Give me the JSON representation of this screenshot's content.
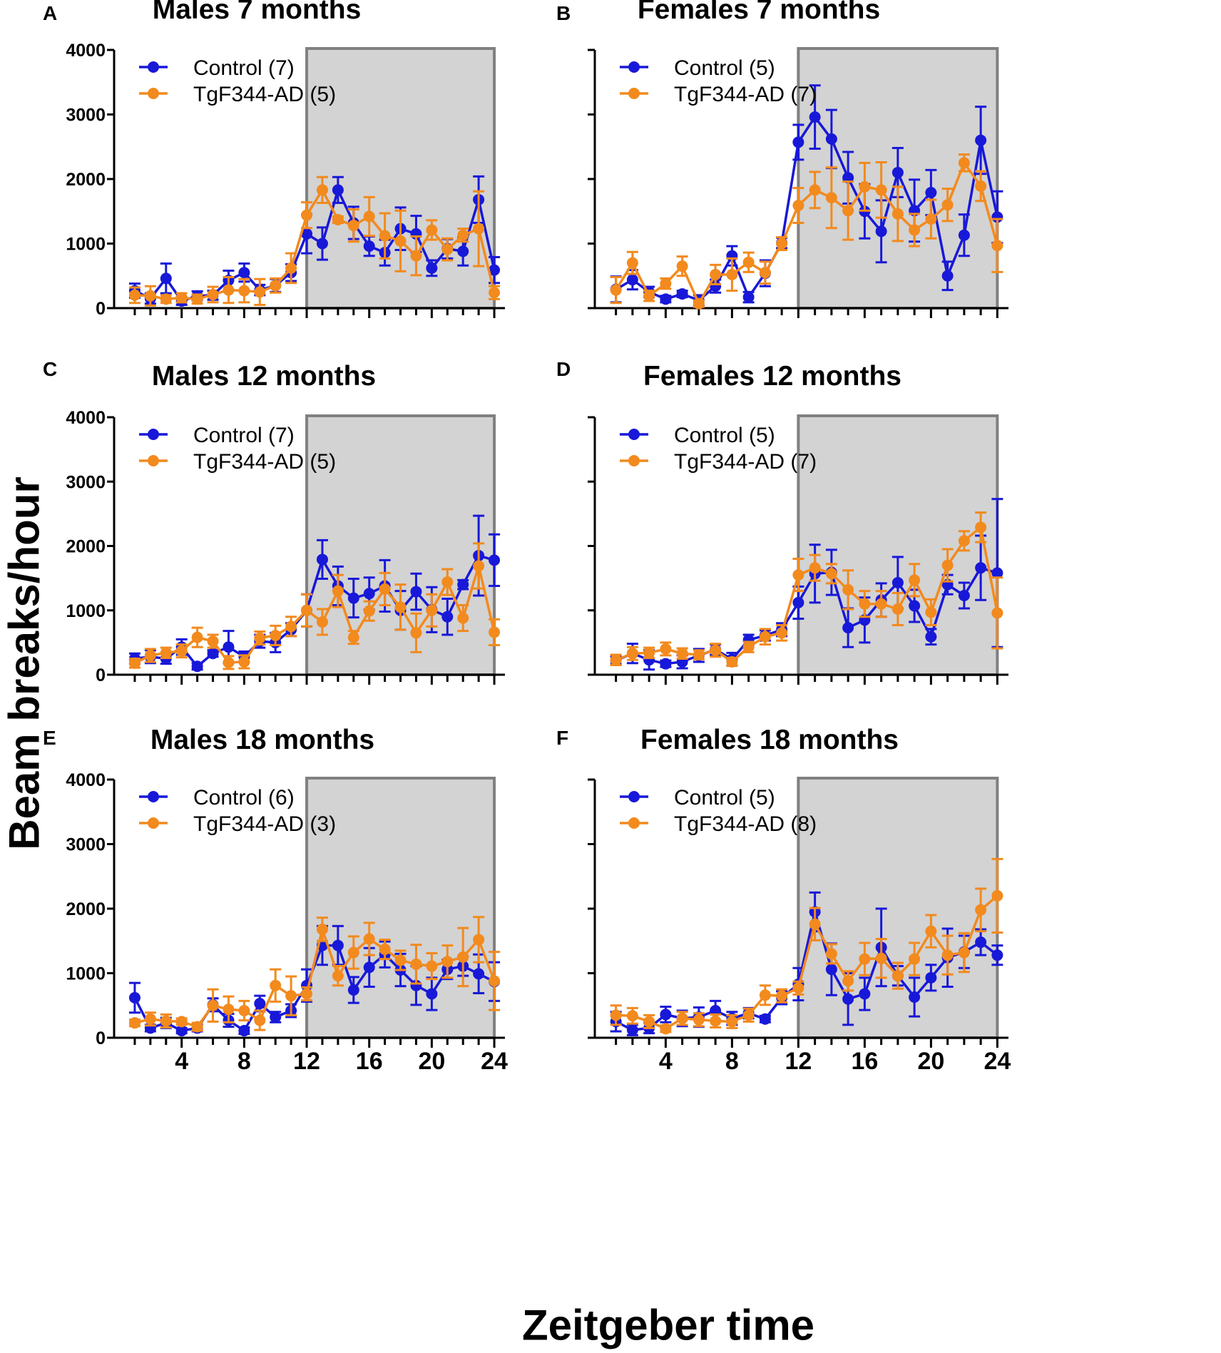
{
  "figure": {
    "ylabel": "Beam breaks/hour",
    "xlabel": "Zeitgeber time"
  },
  "colors": {
    "control": "#1818d8",
    "tg": "#f28a1e",
    "dark_phase": "#d3d3d3",
    "dark_border": "#808080"
  },
  "chart_data": [
    {
      "type": "line",
      "panel": "A",
      "title": "Males 7 months",
      "x": [
        1,
        2,
        3,
        4,
        5,
        6,
        7,
        8,
        9,
        10,
        11,
        12,
        13,
        14,
        15,
        16,
        17,
        18,
        19,
        20,
        21,
        22,
        23,
        24
      ],
      "xticks": [
        4,
        8,
        12,
        16,
        20,
        24
      ],
      "xlim": [
        0.5,
        24.5
      ],
      "yticks": [
        0,
        1000,
        2000,
        3000,
        4000
      ],
      "ylim": [
        0,
        4000
      ],
      "show_ytick_labels": true,
      "dark_phase": [
        12,
        24
      ],
      "legend_position": "top-left",
      "series": [
        {
          "name": "Control (7)",
          "key": "control",
          "values": [
            270,
            150,
            460,
            110,
            190,
            200,
            430,
            550,
            280,
            350,
            550,
            1150,
            1000,
            1830,
            1320,
            960,
            860,
            1230,
            1150,
            620,
            920,
            880,
            1680,
            590
          ],
          "errors": [
            110,
            80,
            230,
            60,
            70,
            70,
            150,
            140,
            80,
            100,
            130,
            300,
            250,
            200,
            250,
            150,
            200,
            330,
            280,
            120,
            150,
            220,
            360,
            200
          ]
        },
        {
          "name": "TgF344-AD (5)",
          "key": "tg",
          "values": [
            200,
            190,
            140,
            160,
            140,
            210,
            280,
            270,
            250,
            350,
            620,
            1440,
            1830,
            1370,
            1280,
            1420,
            1120,
            1040,
            810,
            1210,
            910,
            1130,
            1230,
            240
          ],
          "errors": [
            120,
            150,
            60,
            70,
            70,
            120,
            200,
            180,
            200,
            110,
            230,
            200,
            200,
            50,
            250,
            300,
            350,
            470,
            300,
            150,
            170,
            100,
            580,
            100
          ]
        }
      ]
    },
    {
      "type": "line",
      "panel": "B",
      "title": "Females 7 months",
      "x": [
        1,
        2,
        3,
        4,
        5,
        6,
        7,
        8,
        9,
        10,
        11,
        12,
        13,
        14,
        15,
        16,
        17,
        18,
        19,
        20,
        21,
        22,
        23,
        24
      ],
      "xticks": [
        4,
        8,
        12,
        16,
        20,
        24
      ],
      "xlim": [
        0.5,
        24.5
      ],
      "yticks": [
        0,
        1000,
        2000,
        3000,
        4000
      ],
      "ylim": [
        0,
        4000
      ],
      "show_ytick_labels": false,
      "dark_phase": [
        12,
        24
      ],
      "legend_position": "top-left",
      "series": [
        {
          "name": "Control (5)",
          "key": "control",
          "values": [
            290,
            440,
            250,
            140,
            220,
            120,
            340,
            810,
            170,
            540,
            1010,
            2570,
            2960,
            2620,
            2020,
            1500,
            1190,
            2100,
            1510,
            1790,
            500,
            1130,
            2600,
            1410
          ],
          "errors": [
            200,
            150,
            80,
            50,
            50,
            80,
            100,
            150,
            80,
            200,
            80,
            270,
            490,
            450,
            400,
            420,
            480,
            380,
            480,
            350,
            220,
            320,
            520,
            400
          ]
        },
        {
          "name": "TgF344-AD (7)",
          "key": "tg",
          "values": [
            280,
            700,
            190,
            380,
            650,
            70,
            520,
            520,
            710,
            550,
            1000,
            1590,
            1830,
            1710,
            1510,
            1880,
            1830,
            1460,
            1210,
            1380,
            1600,
            2250,
            1890,
            970
          ],
          "errors": [
            200,
            170,
            80,
            80,
            150,
            50,
            150,
            250,
            150,
            170,
            100,
            270,
            280,
            470,
            450,
            370,
            430,
            420,
            250,
            300,
            250,
            130,
            230,
            410
          ]
        }
      ]
    },
    {
      "type": "line",
      "panel": "C",
      "title": "Males 12 months",
      "x": [
        1,
        2,
        3,
        4,
        5,
        6,
        7,
        8,
        9,
        10,
        11,
        12,
        13,
        14,
        15,
        16,
        17,
        18,
        19,
        20,
        21,
        22,
        23,
        24
      ],
      "xticks": [
        4,
        8,
        12,
        16,
        20,
        24
      ],
      "xlim": [
        0.5,
        24.5
      ],
      "yticks": [
        0,
        1000,
        2000,
        3000,
        4000
      ],
      "ylim": [
        0,
        4000
      ],
      "show_ytick_labels": true,
      "dark_phase": [
        12,
        24
      ],
      "legend_position": "top-left",
      "series": [
        {
          "name": "Control (7)",
          "key": "control",
          "values": [
            250,
            280,
            250,
            430,
            130,
            330,
            430,
            280,
            520,
            500,
            700,
            1000,
            1790,
            1380,
            1190,
            1260,
            1380,
            1000,
            1290,
            1010,
            900,
            1400,
            1850,
            1780
          ],
          "errors": [
            80,
            100,
            80,
            120,
            50,
            50,
            250,
            80,
            100,
            150,
            100,
            250,
            300,
            300,
            300,
            250,
            400,
            300,
            280,
            350,
            280,
            70,
            620,
            400
          ]
        },
        {
          "name": "TgF344-AD (5)",
          "key": "tg",
          "values": [
            180,
            300,
            340,
            370,
            580,
            520,
            190,
            200,
            570,
            610,
            750,
            1000,
            820,
            1300,
            580,
            990,
            1330,
            1050,
            650,
            1000,
            1440,
            880,
            1690,
            660
          ],
          "errors": [
            70,
            100,
            80,
            100,
            150,
            100,
            100,
            100,
            100,
            150,
            150,
            250,
            200,
            250,
            100,
            150,
            250,
            350,
            300,
            250,
            200,
            200,
            350,
            200
          ]
        }
      ]
    },
    {
      "type": "line",
      "panel": "D",
      "title": "Females 12 months",
      "x": [
        1,
        2,
        3,
        4,
        5,
        6,
        7,
        8,
        9,
        10,
        11,
        12,
        13,
        14,
        15,
        16,
        17,
        18,
        19,
        20,
        21,
        22,
        23,
        24
      ],
      "xticks": [
        4,
        8,
        12,
        16,
        20,
        24
      ],
      "xlim": [
        0.5,
        24.5
      ],
      "yticks": [
        0,
        1000,
        2000,
        3000,
        4000
      ],
      "ylim": [
        0,
        4000
      ],
      "show_ytick_labels": false,
      "dark_phase": [
        12,
        24
      ],
      "legend_position": "top-left",
      "series": [
        {
          "name": "Control (5)",
          "key": "control",
          "values": [
            220,
            330,
            230,
            170,
            200,
            300,
            390,
            240,
            540,
            610,
            700,
            1120,
            1570,
            1590,
            730,
            850,
            1160,
            1430,
            1070,
            590,
            1400,
            1230,
            1660,
            1580
          ],
          "errors": [
            60,
            150,
            150,
            50,
            100,
            100,
            80,
            100,
            80,
            80,
            100,
            250,
            450,
            350,
            300,
            350,
            260,
            400,
            250,
            120,
            150,
            200,
            500,
            1150
          ]
        },
        {
          "name": "TgF344-AD (7)",
          "key": "tg",
          "values": [
            230,
            330,
            340,
            400,
            330,
            310,
            380,
            200,
            430,
            590,
            650,
            1550,
            1660,
            1570,
            1320,
            1100,
            1100,
            1020,
            1470,
            970,
            1700,
            2080,
            2290,
            960
          ],
          "errors": [
            80,
            100,
            80,
            100,
            80,
            70,
            100,
            60,
            80,
            120,
            120,
            250,
            200,
            150,
            300,
            200,
            200,
            250,
            250,
            200,
            250,
            150,
            230,
            550
          ]
        }
      ]
    },
    {
      "type": "line",
      "panel": "E",
      "title": "Males 18 months",
      "x": [
        1,
        2,
        3,
        4,
        5,
        6,
        7,
        8,
        9,
        10,
        11,
        12,
        13,
        14,
        15,
        16,
        17,
        18,
        19,
        20,
        21,
        22,
        23,
        24
      ],
      "xticks": [
        4,
        8,
        12,
        16,
        20,
        24
      ],
      "xlim": [
        0.5,
        24.5
      ],
      "yticks": [
        0,
        1000,
        2000,
        3000,
        4000
      ],
      "ylim": [
        0,
        4000
      ],
      "show_ytick_labels": true,
      "dark_phase": [
        12,
        24
      ],
      "legend_position": "top-left",
      "series": [
        {
          "name": "Control (6)",
          "key": "control",
          "values": [
            620,
            150,
            230,
            110,
            150,
            510,
            270,
            110,
            530,
            320,
            420,
            810,
            1430,
            1430,
            740,
            1090,
            1290,
            1050,
            810,
            680,
            1060,
            1110,
            990,
            870
          ],
          "errors": [
            230,
            50,
            80,
            40,
            50,
            100,
            100,
            50,
            120,
            80,
            100,
            250,
            300,
            300,
            200,
            300,
            200,
            250,
            300,
            250,
            150,
            150,
            300,
            300
          ]
        },
        {
          "name": "TgF344-AD (3)",
          "key": "tg",
          "values": [
            230,
            290,
            260,
            250,
            170,
            500,
            440,
            420,
            270,
            810,
            650,
            680,
            1680,
            960,
            1320,
            1530,
            1370,
            1200,
            1140,
            1110,
            1180,
            1250,
            1520,
            880
          ],
          "errors": [
            50,
            100,
            100,
            50,
            60,
            250,
            200,
            150,
            150,
            250,
            300,
            100,
            180,
            150,
            250,
            250,
            150,
            150,
            300,
            200,
            250,
            450,
            350,
            450
          ]
        }
      ]
    },
    {
      "type": "line",
      "panel": "F",
      "title": "Females 18 months",
      "x": [
        1,
        2,
        3,
        4,
        5,
        6,
        7,
        8,
        9,
        10,
        11,
        12,
        13,
        14,
        15,
        16,
        17,
        18,
        19,
        20,
        21,
        22,
        23,
        24
      ],
      "xticks": [
        4,
        8,
        12,
        16,
        20,
        24
      ],
      "xlim": [
        0.5,
        24.5
      ],
      "yticks": [
        0,
        1000,
        2000,
        3000,
        4000
      ],
      "ylim": [
        0,
        4000
      ],
      "show_ytick_labels": false,
      "dark_phase": [
        12,
        24
      ],
      "legend_position": "top-left",
      "series": [
        {
          "name": "Control (5)",
          "key": "control",
          "values": [
            250,
            120,
            150,
            360,
            300,
            320,
            420,
            300,
            380,
            290,
            620,
            830,
            1950,
            1060,
            600,
            680,
            1400,
            960,
            630,
            930,
            1240,
            1330,
            1480,
            1280
          ],
          "errors": [
            150,
            80,
            80,
            120,
            120,
            150,
            150,
            100,
            80,
            50,
            100,
            250,
            300,
            400,
            400,
            250,
            600,
            150,
            300,
            200,
            450,
            250,
            200,
            150
          ]
        },
        {
          "name": "TgF344-AD (8)",
          "key": "tg",
          "values": [
            350,
            340,
            250,
            140,
            300,
            280,
            260,
            250,
            350,
            660,
            650,
            770,
            1760,
            1300,
            880,
            1220,
            1230,
            960,
            1220,
            1650,
            1280,
            1320,
            1980,
            2200
          ],
          "errors": [
            150,
            120,
            100,
            50,
            100,
            100,
            100,
            100,
            100,
            150,
            100,
            100,
            250,
            150,
            150,
            250,
            300,
            200,
            250,
            250,
            300,
            300,
            330,
            570
          ]
        }
      ]
    }
  ]
}
